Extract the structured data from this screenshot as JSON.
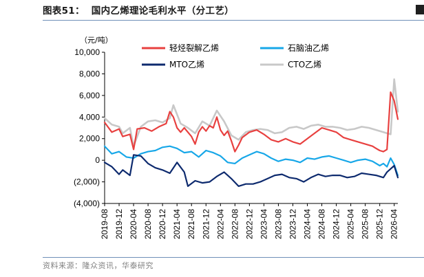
{
  "header": {
    "figure_no": "图表51：",
    "title": "国内乙烯理论毛利水平（分工艺）"
  },
  "source": "资料来源：隆众资讯，华泰研究",
  "colors": {
    "accent_rule": "#6f8fb8",
    "series": [
      "#e8403f",
      "#17a7e8",
      "#0d2a6e",
      "#c8c8c8"
    ]
  },
  "chart_data": {
    "type": "line",
    "ylabel": "（元/吨）",
    "ylim": [
      -4000,
      10000
    ],
    "yticks": [
      -4000,
      -2000,
      0,
      2000,
      4000,
      6000,
      8000,
      10000
    ],
    "ytick_labels": [
      "(4,000)",
      "(2,000)",
      "0",
      "2,000",
      "4,000",
      "6,000",
      "8,000",
      "10,000"
    ],
    "xlim": [
      "2019-08",
      "2026-05"
    ],
    "xtick_labels": [
      "2019-08",
      "2019-12",
      "2020-04",
      "2020-08",
      "2020-12",
      "2021-04",
      "2021-08",
      "2021-12",
      "2022-04",
      "2022-08",
      "2022-12",
      "2023-04",
      "2023-08",
      "2023-12",
      "2024-04",
      "2024-08",
      "2024-12",
      "2025-04",
      "2025-08",
      "2025-12",
      "2026-04"
    ],
    "grid": false,
    "legend_position": "top",
    "series": [
      {
        "name": "轻烃裂解乙烯",
        "x": [
          "2019-08",
          "2019-10",
          "2019-12",
          "2020-01",
          "2020-03",
          "2020-04",
          "2020-05",
          "2020-07",
          "2020-09",
          "2020-11",
          "2021-01",
          "2021-02",
          "2021-03",
          "2021-04",
          "2021-05",
          "2021-06",
          "2021-08",
          "2021-09",
          "2021-10",
          "2021-11",
          "2021-12",
          "2022-01",
          "2022-02",
          "2022-03",
          "2022-04",
          "2022-05",
          "2022-06",
          "2022-07",
          "2022-08",
          "2022-09",
          "2022-10",
          "2022-12",
          "2023-02",
          "2023-04",
          "2023-06",
          "2023-08",
          "2023-10",
          "2023-12",
          "2024-02",
          "2024-04",
          "2024-06",
          "2024-08",
          "2024-10",
          "2024-12",
          "2025-02",
          "2025-04",
          "2025-06",
          "2025-08",
          "2025-10",
          "2025-11",
          "2025-12",
          "2026-01",
          "2026-02",
          "2026-03",
          "2026-04",
          "2026-05"
        ],
        "y": [
          3500,
          2600,
          2900,
          2200,
          2400,
          1000,
          2900,
          3000,
          2700,
          3100,
          3400,
          4500,
          4000,
          3000,
          2600,
          3000,
          2200,
          1500,
          2600,
          3100,
          2700,
          3200,
          3000,
          4000,
          2800,
          2300,
          2700,
          1800,
          800,
          1400,
          2100,
          2600,
          2800,
          2400,
          1900,
          1700,
          2000,
          1700,
          1500,
          2000,
          2500,
          3000,
          2800,
          2600,
          2100,
          1900,
          1700,
          1500,
          1300,
          1100,
          900,
          800,
          1000,
          6300,
          5500,
          3800
        ]
      },
      {
        "name": "石脑油乙烯",
        "x": [
          "2019-08",
          "2019-10",
          "2019-12",
          "2020-02",
          "2020-04",
          "2020-06",
          "2020-08",
          "2020-10",
          "2020-12",
          "2021-02",
          "2021-04",
          "2021-06",
          "2021-08",
          "2021-10",
          "2021-12",
          "2022-02",
          "2022-04",
          "2022-06",
          "2022-08",
          "2022-10",
          "2022-12",
          "2023-02",
          "2023-04",
          "2023-06",
          "2023-08",
          "2023-10",
          "2023-12",
          "2024-02",
          "2024-04",
          "2024-06",
          "2024-08",
          "2024-10",
          "2024-12",
          "2025-02",
          "2025-04",
          "2025-06",
          "2025-08",
          "2025-10",
          "2025-12",
          "2026-01",
          "2026-02",
          "2026-03",
          "2026-04",
          "2026-05"
        ],
        "y": [
          1300,
          600,
          800,
          300,
          200,
          600,
          800,
          900,
          1200,
          1300,
          1100,
          700,
          800,
          300,
          900,
          700,
          400,
          -200,
          -300,
          200,
          500,
          800,
          600,
          200,
          -100,
          100,
          0,
          -200,
          200,
          100,
          300,
          400,
          200,
          0,
          -200,
          0,
          100,
          -100,
          -500,
          -300,
          -600,
          200,
          -400,
          -1400
        ]
      },
      {
        "name": "MTO乙烯",
        "x": [
          "2019-08",
          "2019-10",
          "2019-12",
          "2020-01",
          "2020-03",
          "2020-04",
          "2020-06",
          "2020-08",
          "2020-10",
          "2020-12",
          "2021-02",
          "2021-04",
          "2021-06",
          "2021-07",
          "2021-09",
          "2021-11",
          "2022-01",
          "2022-03",
          "2022-05",
          "2022-07",
          "2022-09",
          "2022-11",
          "2023-01",
          "2023-03",
          "2023-05",
          "2023-07",
          "2023-09",
          "2023-11",
          "2024-01",
          "2024-03",
          "2024-05",
          "2024-07",
          "2024-09",
          "2024-11",
          "2025-01",
          "2025-03",
          "2025-05",
          "2025-07",
          "2025-09",
          "2025-11",
          "2026-01",
          "2026-02",
          "2026-03",
          "2026-04",
          "2026-05"
        ],
        "y": [
          -200,
          -600,
          -1300,
          -900,
          -1400,
          500,
          400,
          -300,
          -700,
          -900,
          -1200,
          -200,
          -1100,
          -2400,
          -1900,
          -2100,
          -2000,
          -1500,
          -1100,
          -1700,
          -2400,
          -2200,
          -2200,
          -2000,
          -1700,
          -1400,
          -1300,
          -1600,
          -1700,
          -2000,
          -1600,
          -1300,
          -1500,
          -1400,
          -1400,
          -1600,
          -1500,
          -1200,
          -1300,
          -1400,
          -1600,
          -1100,
          -800,
          -500,
          -1600
        ]
      },
      {
        "name": "CTO乙烯",
        "x": [
          "2019-08",
          "2019-10",
          "2019-12",
          "2020-01",
          "2020-03",
          "2020-04",
          "2020-06",
          "2020-08",
          "2020-10",
          "2020-12",
          "2021-02",
          "2021-03",
          "2021-05",
          "2021-07",
          "2021-09",
          "2021-11",
          "2022-01",
          "2022-03",
          "2022-05",
          "2022-07",
          "2022-09",
          "2022-11",
          "2023-01",
          "2023-03",
          "2023-05",
          "2023-07",
          "2023-09",
          "2023-11",
          "2024-01",
          "2024-03",
          "2024-05",
          "2024-07",
          "2024-09",
          "2024-11",
          "2025-01",
          "2025-03",
          "2025-05",
          "2025-07",
          "2025-09",
          "2025-11",
          "2026-01",
          "2026-02",
          "2026-03",
          "2026-04",
          "2026-05"
        ],
        "y": [
          3900,
          3300,
          3100,
          2500,
          3000,
          1300,
          3100,
          3600,
          3700,
          3500,
          3900,
          5100,
          3400,
          3000,
          2500,
          3600,
          3200,
          4600,
          3600,
          2300,
          1900,
          2600,
          2800,
          2900,
          2800,
          2500,
          2600,
          3000,
          3100,
          2900,
          3200,
          3300,
          3100,
          3100,
          3000,
          2800,
          2900,
          3100,
          3000,
          2800,
          2600,
          2500,
          2400,
          7500,
          4500
        ]
      }
    ]
  }
}
